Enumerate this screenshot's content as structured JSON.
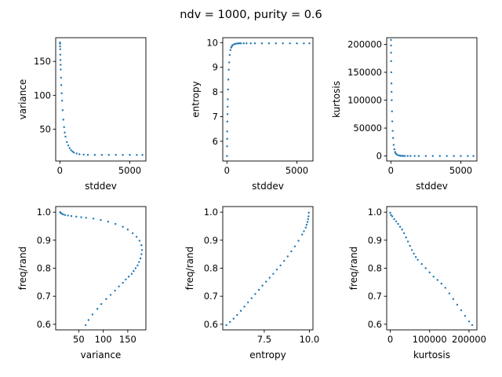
{
  "figure": {
    "title": "ndv = 1000, purity = 0.6"
  },
  "chart_data": [
    {
      "type": "scatter",
      "id": "variance-vs-stddev",
      "xlabel": "stddev",
      "ylabel": "variance",
      "xlim": [
        -300,
        6150
      ],
      "ylim": [
        3,
        185
      ],
      "xticks": [
        0,
        5000
      ],
      "xtick_labels": [
        "0",
        "5000"
      ],
      "yticks": [
        50,
        100,
        150
      ],
      "ytick_labels": [
        "50",
        "100",
        "150"
      ],
      "x": [
        5,
        10,
        15,
        20,
        30,
        40,
        50,
        60,
        80,
        100,
        130,
        160,
        200,
        250,
        300,
        350,
        400,
        500,
        600,
        700,
        800,
        900,
        1000,
        1200,
        1400,
        1700,
        2000,
        2500,
        3000,
        3500,
        4000,
        4500,
        5000,
        5500,
        5900
      ],
      "y": [
        178,
        176,
        172,
        168,
        160,
        152,
        145,
        138,
        126,
        115,
        103,
        92,
        78,
        64,
        53,
        45,
        39,
        31,
        26,
        22,
        19,
        17,
        15.5,
        14,
        13,
        12.5,
        12,
        12,
        12,
        12,
        12,
        12,
        12,
        12,
        12
      ]
    },
    {
      "type": "scatter",
      "id": "entropy-vs-stddev",
      "xlabel": "stddev",
      "ylabel": "entropy",
      "xlim": [
        -300,
        6150
      ],
      "ylim": [
        5.2,
        10.2
      ],
      "xticks": [
        0,
        5000
      ],
      "xtick_labels": [
        "0",
        "5000"
      ],
      "yticks": [
        6,
        7,
        8,
        9,
        10
      ],
      "ytick_labels": [
        "6",
        "7",
        "8",
        "9",
        "10"
      ],
      "x": [
        5,
        10,
        15,
        20,
        30,
        40,
        50,
        60,
        80,
        100,
        130,
        160,
        200,
        250,
        300,
        350,
        400,
        500,
        600,
        700,
        800,
        900,
        1000,
        1200,
        1400,
        1700,
        2000,
        2500,
        3000,
        3500,
        4000,
        4500,
        5000,
        5500,
        5900
      ],
      "y": [
        5.4,
        5.8,
        6.1,
        6.4,
        6.8,
        7.1,
        7.4,
        7.7,
        8.1,
        8.5,
        8.9,
        9.2,
        9.5,
        9.7,
        9.8,
        9.85,
        9.9,
        9.93,
        9.95,
        9.96,
        9.97,
        9.97,
        9.97,
        9.97,
        9.97,
        9.97,
        9.97,
        9.97,
        9.97,
        9.97,
        9.97,
        9.97,
        9.97,
        9.97,
        9.97
      ]
    },
    {
      "type": "scatter",
      "id": "kurtosis-vs-stddev",
      "xlabel": "stddev",
      "ylabel": "kurtosis",
      "xlim": [
        -300,
        6150
      ],
      "ylim": [
        -9000,
        212000
      ],
      "xticks": [
        0,
        5000
      ],
      "xtick_labels": [
        "0",
        "5000"
      ],
      "yticks": [
        0,
        50000,
        100000,
        150000,
        200000
      ],
      "ytick_labels": [
        "0",
        "50000",
        "100000",
        "150000",
        "200000"
      ],
      "x": [
        5,
        10,
        15,
        20,
        30,
        40,
        50,
        60,
        80,
        100,
        130,
        160,
        200,
        250,
        300,
        350,
        400,
        500,
        600,
        700,
        800,
        900,
        1000,
        1200,
        1400,
        1700,
        2000,
        2500,
        3000,
        3500,
        4000,
        4500,
        5000,
        5500,
        5900
      ],
      "y": [
        208000,
        198000,
        185000,
        170000,
        150000,
        130000,
        115000,
        100000,
        80000,
        62000,
        45000,
        32000,
        20000,
        12000,
        7000,
        4500,
        3000,
        1500,
        800,
        400,
        200,
        100,
        50,
        20,
        10,
        0,
        0,
        0,
        0,
        0,
        0,
        0,
        0,
        0,
        0
      ]
    },
    {
      "type": "scatter",
      "id": "freq-rand-vs-variance",
      "xlabel": "variance",
      "ylabel": "freq/rand",
      "xlim": [
        3,
        187
      ],
      "ylim": [
        0.58,
        1.02
      ],
      "xticks": [
        50,
        100,
        150
      ],
      "xtick_labels": [
        "50",
        "100",
        "150"
      ],
      "yticks": [
        0.6,
        0.7,
        0.8,
        0.9,
        1.0
      ],
      "ytick_labels": [
        "0.6",
        "0.7",
        "0.8",
        "0.9",
        "1.0"
      ],
      "x": [
        12,
        13,
        15,
        18,
        22,
        28,
        35,
        45,
        55,
        65,
        80,
        95,
        110,
        125,
        140,
        150,
        160,
        168,
        174,
        178,
        179,
        178,
        176,
        173,
        170,
        166,
        162,
        158,
        152,
        146,
        140,
        132,
        124,
        115,
        106,
        96,
        88,
        78,
        70,
        64
      ],
      "y": [
        1.0,
        0.998,
        0.995,
        0.992,
        0.99,
        0.988,
        0.986,
        0.984,
        0.982,
        0.98,
        0.977,
        0.972,
        0.966,
        0.958,
        0.948,
        0.938,
        0.925,
        0.912,
        0.898,
        0.882,
        0.865,
        0.85,
        0.835,
        0.822,
        0.81,
        0.8,
        0.79,
        0.78,
        0.77,
        0.76,
        0.748,
        0.735,
        0.72,
        0.705,
        0.69,
        0.672,
        0.655,
        0.635,
        0.615,
        0.597
      ]
    },
    {
      "type": "scatter",
      "id": "freq-rand-vs-entropy",
      "xlabel": "entropy",
      "ylabel": "freq/rand",
      "xlim": [
        5.2,
        10.2
      ],
      "ylim": [
        0.58,
        1.02
      ],
      "xticks": [
        7.5,
        10.0
      ],
      "xtick_labels": [
        "7.5",
        "10.0"
      ],
      "yticks": [
        0.6,
        0.7,
        0.8,
        0.9,
        1.0
      ],
      "ytick_labels": [
        "0.6",
        "0.7",
        "0.8",
        "0.9",
        "1.0"
      ],
      "x": [
        5.4,
        5.6,
        5.8,
        6.0,
        6.2,
        6.4,
        6.6,
        6.8,
        7.0,
        7.2,
        7.4,
        7.6,
        7.8,
        8.0,
        8.2,
        8.4,
        8.6,
        8.8,
        9.0,
        9.2,
        9.4,
        9.6,
        9.7,
        9.8,
        9.85,
        9.9,
        9.93,
        9.95,
        9.97
      ],
      "y": [
        0.597,
        0.608,
        0.62,
        0.633,
        0.648,
        0.663,
        0.678,
        0.693,
        0.708,
        0.723,
        0.738,
        0.752,
        0.766,
        0.78,
        0.795,
        0.81,
        0.826,
        0.842,
        0.86,
        0.878,
        0.898,
        0.92,
        0.932,
        0.945,
        0.955,
        0.965,
        0.975,
        0.985,
        0.998
      ]
    },
    {
      "type": "scatter",
      "id": "freq-rand-vs-kurtosis",
      "xlabel": "kurtosis",
      "ylabel": "freq/rand",
      "xlim": [
        -9000,
        220000
      ],
      "ylim": [
        0.58,
        1.02
      ],
      "xticks": [
        0,
        100000,
        200000
      ],
      "xtick_labels": [
        "0",
        "100000",
        "200000"
      ],
      "yticks": [
        0.6,
        0.7,
        0.8,
        0.9,
        1.0
      ],
      "ytick_labels": [
        "0.6",
        "0.7",
        "0.8",
        "0.9",
        "1.0"
      ],
      "x": [
        0,
        2000,
        5000,
        10000,
        15000,
        20000,
        25000,
        30000,
        35000,
        40000,
        45000,
        50000,
        55000,
        60000,
        65000,
        70000,
        80000,
        90000,
        100000,
        110000,
        120000,
        130000,
        140000,
        150000,
        160000,
        170000,
        180000,
        190000,
        200000,
        208000
      ],
      "y": [
        0.998,
        0.99,
        0.985,
        0.975,
        0.967,
        0.958,
        0.948,
        0.938,
        0.925,
        0.91,
        0.895,
        0.88,
        0.865,
        0.852,
        0.84,
        0.83,
        0.815,
        0.8,
        0.785,
        0.77,
        0.758,
        0.745,
        0.73,
        0.71,
        0.69,
        0.67,
        0.65,
        0.63,
        0.61,
        0.597
      ]
    }
  ]
}
